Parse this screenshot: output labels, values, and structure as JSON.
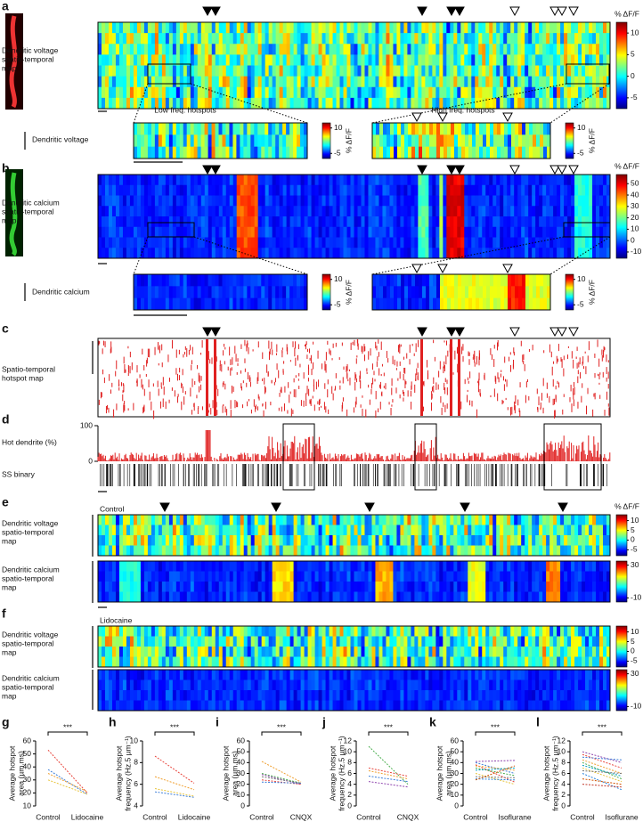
{
  "panels": {
    "a": {
      "letter": "a",
      "label": [
        "Dendritic voltage",
        "spatio-temporal",
        "map"
      ],
      "unit": "% ΔF/F",
      "cbar_lim": [
        -7.5,
        12.5
      ],
      "cbar_ticks": [
        10,
        5,
        0,
        -5
      ],
      "zoom_left": "Low freq. hotspots",
      "zoom_right": "High freq. hotspots",
      "zoom_label": "Dendritic voltage",
      "zoom_unit": "% ΔF/F",
      "zoom_lim": [
        -8,
        13
      ],
      "zoom_ticks": [
        10,
        -5
      ]
    },
    "b": {
      "letter": "b",
      "label": [
        "Dendritic calcium",
        "spatio-temporal",
        "map"
      ],
      "unit": "% ΔF/F",
      "cbar_lim": [
        -15.5,
        58
      ],
      "cbar_ticks": [
        50,
        40,
        30,
        20,
        10,
        0,
        -10
      ],
      "zoom_label": "Dendritic calcium",
      "zoom_unit": "% ΔF/F",
      "zoom_lim": [
        -8,
        13
      ],
      "zoom_ticks": [
        10,
        -5
      ]
    },
    "c": {
      "letter": "c",
      "label": [
        "Spatio-temporal",
        "hotspot map"
      ]
    },
    "d": {
      "letter": "d",
      "label": "Hot dendrite (%)",
      "ylim": [
        0,
        100
      ],
      "yticks": [
        100,
        0
      ],
      "raster_label": "SS binary"
    },
    "e": {
      "letter": "e",
      "condition": "Control",
      "unit": "% ΔF/F",
      "voltage_label": [
        "Dendritic voltage",
        "spatio-temporal",
        "map"
      ],
      "calcium_label": [
        "Dendritic calcium",
        "spatio-temporal",
        "map"
      ],
      "voltage_lim": [
        -8,
        13
      ],
      "voltage_ticks": [
        10,
        5,
        0,
        -5
      ],
      "calcium_lim": [
        -15,
        35
      ],
      "calcium_ticks": [
        30,
        -10
      ]
    },
    "f": {
      "letter": "f",
      "condition": "Lidocaine",
      "voltage_label": [
        "Dendritic voltage",
        "spatio-temporal",
        "map"
      ],
      "calcium_label": [
        "Dendritic calcium",
        "spatio-temporal",
        "map"
      ],
      "voltage_lim": [
        -8,
        13
      ],
      "voltage_ticks": [
        10,
        5,
        0,
        -5
      ],
      "calcium_lim": [
        -15,
        35
      ],
      "calcium_ticks": [
        30,
        -10
      ]
    }
  },
  "chart_data": [
    {
      "type": "line",
      "panel": "g",
      "significance": "***",
      "ylabel": [
        "Average hotspot",
        "area (µm.ms)"
      ],
      "categories": [
        "Control",
        "Lidocaine"
      ],
      "ylim": [
        10,
        60
      ],
      "yticks": [
        10,
        20,
        30,
        40,
        50,
        60
      ],
      "series": [
        {
          "color": "#e8453c",
          "values": [
            53,
            20
          ]
        },
        {
          "color": "#3b7dd8",
          "values": [
            38,
            19
          ]
        },
        {
          "color": "#f0a030",
          "values": [
            35,
            21
          ]
        },
        {
          "color": "#e8c43c",
          "values": [
            30,
            19
          ]
        }
      ]
    },
    {
      "type": "line",
      "panel": "h",
      "significance": "***",
      "ylabel": [
        "Average hotspot",
        "frequency (Hz.5 µm⁻¹)"
      ],
      "categories": [
        "Control",
        "Lidocaine"
      ],
      "ylim": [
        4,
        10
      ],
      "yticks": [
        4,
        6,
        8,
        10
      ],
      "series": [
        {
          "color": "#e8453c",
          "values": [
            8.6,
            6.1
          ]
        },
        {
          "color": "#f0a030",
          "values": [
            6.7,
            5.5
          ]
        },
        {
          "color": "#e8c43c",
          "values": [
            5.6,
            4.9
          ]
        },
        {
          "color": "#3b7dd8",
          "values": [
            5.3,
            4.8
          ]
        }
      ]
    },
    {
      "type": "line",
      "panel": "i",
      "significance": "***",
      "ylabel": [
        "Average hotspot",
        "area (µm.ms)"
      ],
      "categories": [
        "Control",
        "CNQX"
      ],
      "ylim": [
        0,
        60
      ],
      "yticks": [
        0,
        10,
        20,
        30,
        40,
        50,
        60
      ],
      "series": [
        {
          "color": "#f0a030",
          "values": [
            41,
            22
          ]
        },
        {
          "color": "#4caf50",
          "values": [
            30,
            21
          ]
        },
        {
          "color": "#8e44ad",
          "values": [
            29,
            20
          ]
        },
        {
          "color": "#777777",
          "values": [
            27,
            21
          ]
        },
        {
          "color": "#e8453c",
          "values": [
            24,
            20
          ]
        },
        {
          "color": "#3b7dd8",
          "values": [
            22,
            21
          ]
        }
      ]
    },
    {
      "type": "line",
      "panel": "j",
      "significance": "***",
      "ylabel": [
        "Average hotspot",
        "frequency (Hz.5 µm⁻¹)"
      ],
      "categories": [
        "Control",
        "CNQX"
      ],
      "ylim": [
        0,
        12
      ],
      "yticks": [
        0,
        2,
        4,
        6,
        8,
        10,
        12
      ],
      "series": [
        {
          "color": "#4caf50",
          "values": [
            11,
            4
          ]
        },
        {
          "color": "#e8453c",
          "values": [
            7,
            5.5
          ]
        },
        {
          "color": "#f0a030",
          "values": [
            6.5,
            5
          ]
        },
        {
          "color": "#3b7dd8",
          "values": [
            5.5,
            4.5
          ]
        },
        {
          "color": "#8e44ad",
          "values": [
            4.5,
            3.5
          ]
        }
      ]
    },
    {
      "type": "line",
      "panel": "k",
      "significance": "***",
      "ylabel": [
        "Average hotspot",
        "area (µm.ms)"
      ],
      "categories": [
        "Control",
        "Isoflurane"
      ],
      "ylim": [
        0,
        60
      ],
      "yticks": [
        0,
        10,
        20,
        30,
        40,
        50,
        60
      ],
      "series": [
        {
          "color": "#8e44ad",
          "values": [
            41,
            42
          ]
        },
        {
          "color": "#3b7dd8",
          "values": [
            40,
            30
          ]
        },
        {
          "color": "#e8453c",
          "values": [
            38,
            22
          ]
        },
        {
          "color": "#f0a030",
          "values": [
            37,
            33
          ]
        },
        {
          "color": "#4caf50",
          "values": [
            35,
            28
          ]
        },
        {
          "color": "#00a0c0",
          "values": [
            33,
            35
          ]
        },
        {
          "color": "#e8c43c",
          "values": [
            30,
            20
          ]
        },
        {
          "color": "#777777",
          "values": [
            27,
            26
          ]
        },
        {
          "color": "#2e86de",
          "values": [
            25,
            24
          ]
        },
        {
          "color": "#d35400",
          "values": [
            24,
            37
          ]
        }
      ]
    },
    {
      "type": "line",
      "panel": "l",
      "significance": "***",
      "ylabel": [
        "Average hotspot",
        "frequency (Hz.5 µm⁻¹)"
      ],
      "categories": [
        "Control",
        "Isoflurane"
      ],
      "ylim": [
        0,
        12
      ],
      "yticks": [
        0,
        2,
        4,
        6,
        8,
        10,
        12
      ],
      "series": [
        {
          "color": "#8e44ad",
          "values": [
            10,
            8
          ]
        },
        {
          "color": "#e8453c",
          "values": [
            9.5,
            7
          ]
        },
        {
          "color": "#3b7dd8",
          "values": [
            9,
            8.5
          ]
        },
        {
          "color": "#f0a030",
          "values": [
            8.5,
            6
          ]
        },
        {
          "color": "#4caf50",
          "values": [
            8,
            5
          ]
        },
        {
          "color": "#00a0c0",
          "values": [
            7.5,
            5.5
          ]
        },
        {
          "color": "#e8c43c",
          "values": [
            7,
            4.5
          ]
        },
        {
          "color": "#777777",
          "values": [
            6.5,
            6
          ]
        },
        {
          "color": "#2e86de",
          "values": [
            6,
            3
          ]
        },
        {
          "color": "#d35400",
          "values": [
            5,
            4
          ]
        },
        {
          "color": "#c0392b",
          "values": [
            4,
            3.5
          ]
        }
      ]
    }
  ]
}
